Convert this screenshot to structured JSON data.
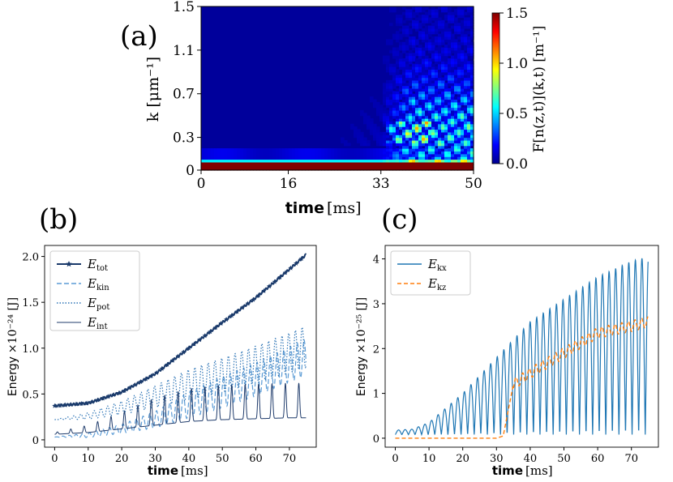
{
  "chart_data": [
    {
      "panel": "(a)",
      "type": "heatmap",
      "xlabel_bold": "time",
      "xlabel_unit": "[ms]",
      "ylabel": "k [μm⁻¹]",
      "y_tick_labels": [
        "0",
        "0.3",
        "0.7",
        "1.1",
        "1.5"
      ],
      "y_ticks": [
        0,
        0.3,
        0.7,
        1.1,
        1.5
      ],
      "x_tick_labels": [
        "0",
        "16",
        "33",
        "50"
      ],
      "x_ticks": [
        0,
        16,
        33,
        50
      ],
      "xlim": [
        0,
        50
      ],
      "ylim": [
        0,
        1.5
      ],
      "colorbar_label": "F[n(z,t)](k,t) [m⁻¹]",
      "colorbar_tick_labels": [
        "0.0",
        "0.5",
        "1.0",
        "1.5"
      ],
      "colorbar_ticks": [
        0,
        0.5,
        1.0,
        1.5
      ],
      "colorbar_range": [
        0,
        1.5
      ],
      "features": [
        {
          "description": "saturated band",
          "k_range": [
            0,
            0.07
          ],
          "t_range": [
            0,
            50
          ],
          "value": 1.5
        },
        {
          "description": "weak band",
          "k_range": [
            0.1,
            0.2
          ],
          "t_range": [
            0,
            50
          ],
          "value": 0.15
        },
        {
          "description": "structure onset",
          "t_start": 33,
          "value_max": 0.9
        }
      ],
      "colormap": [
        "#00008f",
        "#0000ff",
        "#0080ff",
        "#00ffff",
        "#80ff80",
        "#ffff00",
        "#ff8000",
        "#ff0000",
        "#800000"
      ]
    },
    {
      "panel": "(b)",
      "type": "line",
      "xlabel_bold": "time",
      "xlabel_unit": "[ms]",
      "ylabel_prefix": "Energy",
      "ylabel_suffix": "×10⁻²⁴ [J]",
      "xlim": [
        -3,
        78
      ],
      "ylim": [
        -0.08,
        2.12
      ],
      "x_ticks": [
        0,
        10,
        20,
        30,
        40,
        50,
        60,
        70
      ],
      "x_tick_labels": [
        "0",
        "10",
        "20",
        "30",
        "40",
        "50",
        "60",
        "70"
      ],
      "y_ticks": [
        0,
        0.5,
        1.0,
        1.5,
        2.0
      ],
      "y_tick_labels": [
        "0",
        "0.5",
        "1.0",
        "1.5",
        "2.0"
      ],
      "legend_position": "top-left",
      "series": [
        {
          "name": "E_tot",
          "label_main": "E",
          "label_sub": "tot",
          "color": "#1a3a6b",
          "style": "solid-star",
          "t": [
            0,
            10,
            20,
            30,
            40,
            50,
            60,
            70,
            75
          ],
          "values": [
            0.37,
            0.4,
            0.52,
            0.72,
            1.0,
            1.28,
            1.55,
            1.86,
            2.02
          ]
        },
        {
          "name": "E_kin",
          "label_main": "E",
          "label_sub": "kin",
          "color": "#5b9bd5",
          "style": "dashed",
          "t": [
            0,
            10,
            20,
            30,
            40,
            50,
            60,
            70,
            75
          ],
          "values": [
            0.03,
            0.05,
            0.12,
            0.22,
            0.38,
            0.52,
            0.66,
            0.82,
            0.9
          ],
          "osc_amp": [
            0.0,
            0.05,
            0.1,
            0.18,
            0.28,
            0.34,
            0.36,
            0.38,
            0.4
          ]
        },
        {
          "name": "E_pot",
          "label_main": "E",
          "label_sub": "pot",
          "color": "#2e75b6",
          "style": "dotted",
          "t": [
            0,
            10,
            20,
            30,
            40,
            50,
            60,
            70,
            75
          ],
          "values": [
            0.22,
            0.26,
            0.35,
            0.47,
            0.6,
            0.7,
            0.82,
            0.95,
            1.02
          ],
          "osc_amp": [
            0.0,
            0.06,
            0.12,
            0.2,
            0.28,
            0.32,
            0.34,
            0.36,
            0.38
          ]
        },
        {
          "name": "E_int",
          "label_main": "E",
          "label_sub": "int",
          "color": "#1f3b6b",
          "style": "solid",
          "t": [
            0,
            10,
            20,
            30,
            40,
            50,
            60,
            70,
            75
          ],
          "values": [
            0.1,
            0.12,
            0.16,
            0.2,
            0.24,
            0.26,
            0.27,
            0.28,
            0.28
          ],
          "osc_amp": [
            0.02,
            0.08,
            0.18,
            0.3,
            0.36,
            0.38,
            0.38,
            0.38,
            0.38
          ]
        }
      ]
    },
    {
      "panel": "(c)",
      "type": "line",
      "xlabel_bold": "time",
      "xlabel_unit": "[ms]",
      "ylabel_prefix": "Energy",
      "ylabel_suffix": "×10⁻²⁵ [J]",
      "xlim": [
        -3,
        78
      ],
      "ylim": [
        -0.2,
        4.3
      ],
      "x_ticks": [
        0,
        10,
        20,
        30,
        40,
        50,
        60,
        70
      ],
      "x_tick_labels": [
        "0",
        "10",
        "20",
        "30",
        "40",
        "50",
        "60",
        "70"
      ],
      "y_ticks": [
        0,
        1,
        2,
        3,
        4
      ],
      "y_tick_labels": [
        "0",
        "1",
        "2",
        "3",
        "4"
      ],
      "legend_position": "top-left",
      "series": [
        {
          "name": "E_kx",
          "label_main": "E",
          "label_sub": "kx",
          "color": "#1f77b4",
          "style": "solid",
          "t": [
            0,
            5,
            10,
            20,
            30,
            40,
            50,
            60,
            70,
            75
          ],
          "envelope": [
            0.18,
            0.2,
            0.35,
            1.0,
            1.8,
            2.6,
            3.1,
            3.6,
            3.95,
            4.05
          ],
          "baseline": 0.08
        },
        {
          "name": "E_kz",
          "label_main": "E",
          "label_sub": "kz",
          "color": "#ff7f0e",
          "style": "dashed",
          "t": [
            0,
            30,
            32,
            35,
            40,
            50,
            60,
            70,
            75
          ],
          "values": [
            0,
            0,
            0.05,
            1.2,
            1.45,
            1.9,
            2.35,
            2.5,
            2.6
          ]
        }
      ]
    }
  ]
}
